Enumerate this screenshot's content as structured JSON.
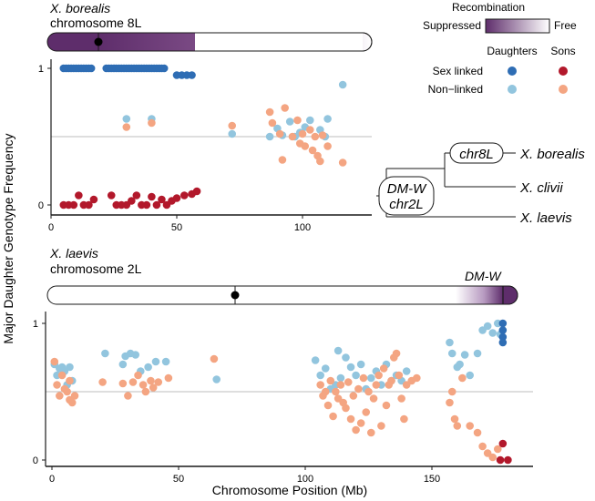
{
  "figure": {
    "y_axis_label": "Major Daughter Genotype Frequency",
    "x_axis_label": "Chromosome Position (Mb)"
  },
  "legend": {
    "recombination_title": "Recombination",
    "suppressed_label": "Suppressed",
    "free_label": "Free",
    "daughters_label": "Daughters",
    "sons_label": "Sons",
    "sex_linked_label": "Sex linked",
    "non_linked_label": "Non−linked",
    "colors": {
      "daughter_sex_linked": "#2e6db4",
      "daughter_non_linked": "#92c5de",
      "son_sex_linked": "#b2182b",
      "son_non_linked": "#f4a582",
      "suppressed": "#5e2d6b"
    }
  },
  "tree": {
    "chr8L_label": "chr8L",
    "dmw_label": "DM-W",
    "chr2L_label": "chr2L",
    "taxa": [
      "X. borealis",
      "X. clivii",
      "X. laevis"
    ]
  },
  "chart_data": [
    {
      "type": "scatter",
      "species": "X. borealis",
      "chromosome": "chromosome 8L",
      "xlim": [
        0,
        125
      ],
      "ylim": [
        0,
        1
      ],
      "xticks": [
        0,
        50,
        100
      ],
      "yticks": [
        0,
        1
      ],
      "reference_line": 0.5,
      "chromosome_bar": {
        "length_mb": 127,
        "centromere_mb": 17,
        "suppressed_range_mb": [
          0,
          58
        ],
        "gradient_end_mb": 58,
        "region_label": ""
      },
      "series": [
        {
          "name": "Daughters sex linked",
          "points": [
            [
              5,
              1
            ],
            [
              6,
              1
            ],
            [
              7,
              1
            ],
            [
              8,
              1
            ],
            [
              9,
              1
            ],
            [
              10,
              1
            ],
            [
              11,
              1
            ],
            [
              12,
              1
            ],
            [
              13,
              1
            ],
            [
              14,
              1
            ],
            [
              15,
              1
            ],
            [
              16,
              1
            ],
            [
              22,
              1
            ],
            [
              23,
              1
            ],
            [
              24,
              1
            ],
            [
              25,
              1
            ],
            [
              26,
              1
            ],
            [
              27,
              1
            ],
            [
              28,
              1
            ],
            [
              29,
              1
            ],
            [
              30,
              1
            ],
            [
              31,
              1
            ],
            [
              32,
              1
            ],
            [
              33,
              1
            ],
            [
              34,
              1
            ],
            [
              35,
              1
            ],
            [
              36,
              1
            ],
            [
              37,
              1
            ],
            [
              38,
              1
            ],
            [
              39,
              1
            ],
            [
              40,
              1
            ],
            [
              41,
              1
            ],
            [
              42,
              1
            ],
            [
              43,
              1
            ],
            [
              44,
              1
            ],
            [
              45,
              1
            ],
            [
              50,
              0.95
            ],
            [
              52,
              0.95
            ],
            [
              54,
              0.95
            ],
            [
              56,
              0.95
            ]
          ]
        },
        {
          "name": "Daughters non-linked",
          "points": [
            [
              30,
              0.63
            ],
            [
              40,
              0.63
            ],
            [
              72,
              0.52
            ],
            [
              87,
              0.5
            ],
            [
              90,
              0.56
            ],
            [
              92,
              0.51
            ],
            [
              95,
              0.61
            ],
            [
              97,
              0.5
            ],
            [
              99,
              0.53
            ],
            [
              101,
              0.57
            ],
            [
              103,
              0.62
            ],
            [
              107,
              0.55
            ],
            [
              109,
              0.5
            ],
            [
              110,
              0.63
            ],
            [
              116,
              0.88
            ]
          ]
        },
        {
          "name": "Sons sex linked",
          "points": [
            [
              5,
              0
            ],
            [
              7,
              0
            ],
            [
              9,
              0
            ],
            [
              11,
              0.07
            ],
            [
              13,
              0
            ],
            [
              15,
              0
            ],
            [
              17,
              0.04
            ],
            [
              24,
              0.07
            ],
            [
              26,
              0
            ],
            [
              28,
              0
            ],
            [
              30,
              0
            ],
            [
              32,
              0.03
            ],
            [
              34,
              0.07
            ],
            [
              36,
              0
            ],
            [
              38,
              0
            ],
            [
              40,
              0.06
            ],
            [
              42,
              0
            ],
            [
              44,
              0.04
            ],
            [
              46,
              0
            ],
            [
              48,
              0.03
            ],
            [
              50,
              0.05
            ],
            [
              53,
              0.07
            ],
            [
              56,
              0.08
            ],
            [
              58,
              0.1
            ]
          ]
        },
        {
          "name": "Sons non-linked",
          "points": [
            [
              30,
              0.57
            ],
            [
              40,
              0.6
            ],
            [
              72,
              0.58
            ],
            [
              87,
              0.68
            ],
            [
              88,
              0.6
            ],
            [
              91,
              0.52
            ],
            [
              92,
              0.33
            ],
            [
              93,
              0.71
            ],
            [
              96,
              0.5
            ],
            [
              98,
              0.62
            ],
            [
              99,
              0.45
            ],
            [
              100,
              0.52
            ],
            [
              101,
              0.43
            ],
            [
              103,
              0.55
            ],
            [
              104,
              0.4
            ],
            [
              105,
              0.5
            ],
            [
              106,
              0.36
            ],
            [
              107,
              0.32
            ],
            [
              108,
              0.51
            ],
            [
              110,
              0.43
            ],
            [
              116,
              0.31
            ]
          ]
        }
      ]
    },
    {
      "type": "scatter",
      "species": "X. laevis",
      "chromosome": "chromosome 2L",
      "xlim": [
        0,
        183
      ],
      "ylim": [
        0,
        1
      ],
      "xticks": [
        0,
        50,
        100,
        150
      ],
      "yticks": [
        0,
        1
      ],
      "reference_line": 0.5,
      "chromosome_bar": {
        "length_mb": 186,
        "centromere_mb": 73,
        "suppressed_range_mb": [
          170,
          186
        ],
        "gradient_end_mb": 168,
        "region_label": "DM-W"
      },
      "series": [
        {
          "name": "Daughters sex linked",
          "points": [
            [
              178,
              1
            ],
            [
              178,
              0.95
            ],
            [
              178,
              0.9
            ],
            [
              178,
              0.86
            ]
          ]
        },
        {
          "name": "Daughters non-linked",
          "points": [
            [
              1,
              0.7
            ],
            [
              2,
              0.62
            ],
            [
              3,
              0.67
            ],
            [
              4,
              0.68
            ],
            [
              5,
              0.65
            ],
            [
              6,
              0.55
            ],
            [
              7,
              0.68
            ],
            [
              8,
              0.58
            ],
            [
              21,
              0.78
            ],
            [
              28,
              0.7
            ],
            [
              29,
              0.76
            ],
            [
              31,
              0.78
            ],
            [
              33,
              0.77
            ],
            [
              35,
              0.65
            ],
            [
              38,
              0.68
            ],
            [
              41,
              0.72
            ],
            [
              45,
              0.72
            ],
            [
              65,
              0.59
            ],
            [
              104,
              0.73
            ],
            [
              106,
              0.62
            ],
            [
              108,
              0.67
            ],
            [
              110,
              0.52
            ],
            [
              112,
              0.55
            ],
            [
              113,
              0.8
            ],
            [
              114,
              0.6
            ],
            [
              116,
              0.75
            ],
            [
              118,
              0.68
            ],
            [
              120,
              0.62
            ],
            [
              122,
              0.7
            ],
            [
              124,
              0.52
            ],
            [
              126,
              0.6
            ],
            [
              128,
              0.65
            ],
            [
              130,
              0.55
            ],
            [
              132,
              0.7
            ],
            [
              134,
              0.58
            ],
            [
              136,
              0.62
            ],
            [
              138,
              0.58
            ],
            [
              140,
              0.65
            ],
            [
              157,
              0.86
            ],
            [
              158,
              0.78
            ],
            [
              160,
              0.68
            ],
            [
              161,
              0.7
            ],
            [
              163,
              0.77
            ],
            [
              165,
              0.62
            ],
            [
              168,
              0.78
            ],
            [
              170,
              0.95
            ],
            [
              172,
              0.98
            ],
            [
              174,
              0.93
            ],
            [
              176,
              1
            ],
            [
              177,
              0.92
            ]
          ]
        },
        {
          "name": "Sons sex linked",
          "points": [
            [
              178,
              0.12
            ],
            [
              177,
              0
            ],
            [
              180,
              0
            ]
          ]
        },
        {
          "name": "Sons non-linked",
          "points": [
            [
              1,
              0.72
            ],
            [
              2,
              0.55
            ],
            [
              3,
              0.47
            ],
            [
              4,
              0.62
            ],
            [
              5,
              0.52
            ],
            [
              6,
              0.5
            ],
            [
              7,
              0.58
            ],
            [
              7,
              0.44
            ],
            [
              8,
              0.42
            ],
            [
              9,
              0.47
            ],
            [
              20,
              0.57
            ],
            [
              28,
              0.56
            ],
            [
              30,
              0.47
            ],
            [
              32,
              0.57
            ],
            [
              34,
              0.62
            ],
            [
              36,
              0.55
            ],
            [
              37,
              0.5
            ],
            [
              39,
              0.58
            ],
            [
              40,
              0.53
            ],
            [
              42,
              0.57
            ],
            [
              46,
              0.6
            ],
            [
              64,
              0.74
            ],
            [
              106,
              0.55
            ],
            [
              107,
              0.47
            ],
            [
              108,
              0.5
            ],
            [
              109,
              0.4
            ],
            [
              110,
              0.58
            ],
            [
              111,
              0.32
            ],
            [
              112,
              0.5
            ],
            [
              113,
              0.45
            ],
            [
              114,
              0.55
            ],
            [
              115,
              0.42
            ],
            [
              116,
              0.38
            ],
            [
              117,
              0.57
            ],
            [
              118,
              0.3
            ],
            [
              119,
              0.47
            ],
            [
              120,
              0.22
            ],
            [
              121,
              0.52
            ],
            [
              122,
              0.27
            ],
            [
              123,
              0.6
            ],
            [
              124,
              0.35
            ],
            [
              125,
              0.5
            ],
            [
              126,
              0.2
            ],
            [
              127,
              0.45
            ],
            [
              128,
              0.55
            ],
            [
              129,
              0.62
            ],
            [
              130,
              0.25
            ],
            [
              131,
              0.67
            ],
            [
              132,
              0.4
            ],
            [
              133,
              0.55
            ],
            [
              134,
              0.58
            ],
            [
              135,
              0.75
            ],
            [
              136,
              0.78
            ],
            [
              137,
              0.62
            ],
            [
              138,
              0.45
            ],
            [
              139,
              0.3
            ],
            [
              140,
              0.55
            ],
            [
              142,
              0.58
            ],
            [
              144,
              0.6
            ],
            [
              157,
              0.42
            ],
            [
              158,
              0.5
            ],
            [
              159,
              0.3
            ],
            [
              160,
              0.25
            ],
            [
              162,
              0.6
            ],
            [
              165,
              0.25
            ],
            [
              168,
              0.2
            ],
            [
              170,
              0.1
            ],
            [
              172,
              0.05
            ],
            [
              174,
              0.02
            ],
            [
              176,
              0.08
            ]
          ]
        }
      ]
    }
  ]
}
